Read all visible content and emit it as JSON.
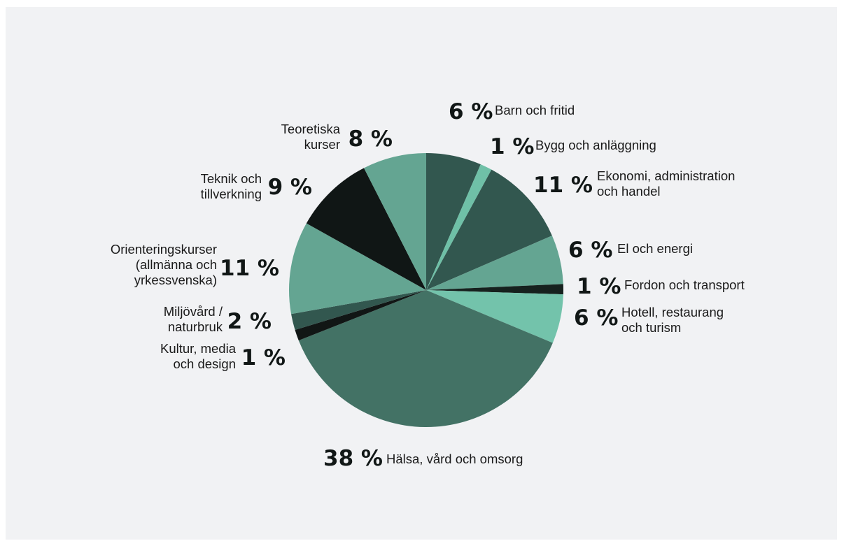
{
  "chart_data": {
    "type": "pie",
    "start_angle_deg": 0,
    "direction": "clockwise",
    "slices": [
      {
        "percent_label": "6 %",
        "value": 6.5,
        "label_lines": [
          "Barn och fritid"
        ],
        "color": "#32574f"
      },
      {
        "percent_label": "1 %",
        "value": 1.4,
        "label_lines": [
          "Bygg och anläggning"
        ],
        "color": "#6fc0a7"
      },
      {
        "percent_label": "11 %",
        "value": 10.6,
        "label_lines": [
          "Ekonomi, administration",
          "och handel"
        ],
        "color": "#32574f"
      },
      {
        "percent_label": "6 %",
        "value": 5.8,
        "label_lines": [
          "El och energi"
        ],
        "color": "#64a592"
      },
      {
        "percent_label": "1 %",
        "value": 1.2,
        "label_lines": [
          "Fordon och transport"
        ],
        "color": "#16211e"
      },
      {
        "percent_label": "6 %",
        "value": 5.8,
        "label_lines": [
          "Hotell, restaurang",
          "och turism"
        ],
        "color": "#73c3ab"
      },
      {
        "percent_label": "38 %",
        "value": 37.7,
        "label_lines": [
          "Hälsa, vård och omsorg"
        ],
        "color": "#437265"
      },
      {
        "percent_label": "1 %",
        "value": 1.3,
        "label_lines": [
          "Kultur, media",
          "och design"
        ],
        "color": "#111615"
      },
      {
        "percent_label": "2 %",
        "value": 1.9,
        "label_lines": [
          "Miljövård /",
          "naturbruk"
        ],
        "color": "#32574f"
      },
      {
        "percent_label": "11 %",
        "value": 10.9,
        "label_lines": [
          "Orienteringskurser",
          "(allmänna och",
          "yrkessvenska)"
        ],
        "color": "#64a592"
      },
      {
        "percent_label": "9 %",
        "value": 9.4,
        "label_lines": [
          "Teknik och",
          "tillverkning"
        ],
        "color": "#101615"
      },
      {
        "percent_label": "8 %",
        "value": 7.5,
        "label_lines": [
          "Teoretiska",
          "kurser"
        ],
        "color": "#64a592"
      }
    ]
  }
}
